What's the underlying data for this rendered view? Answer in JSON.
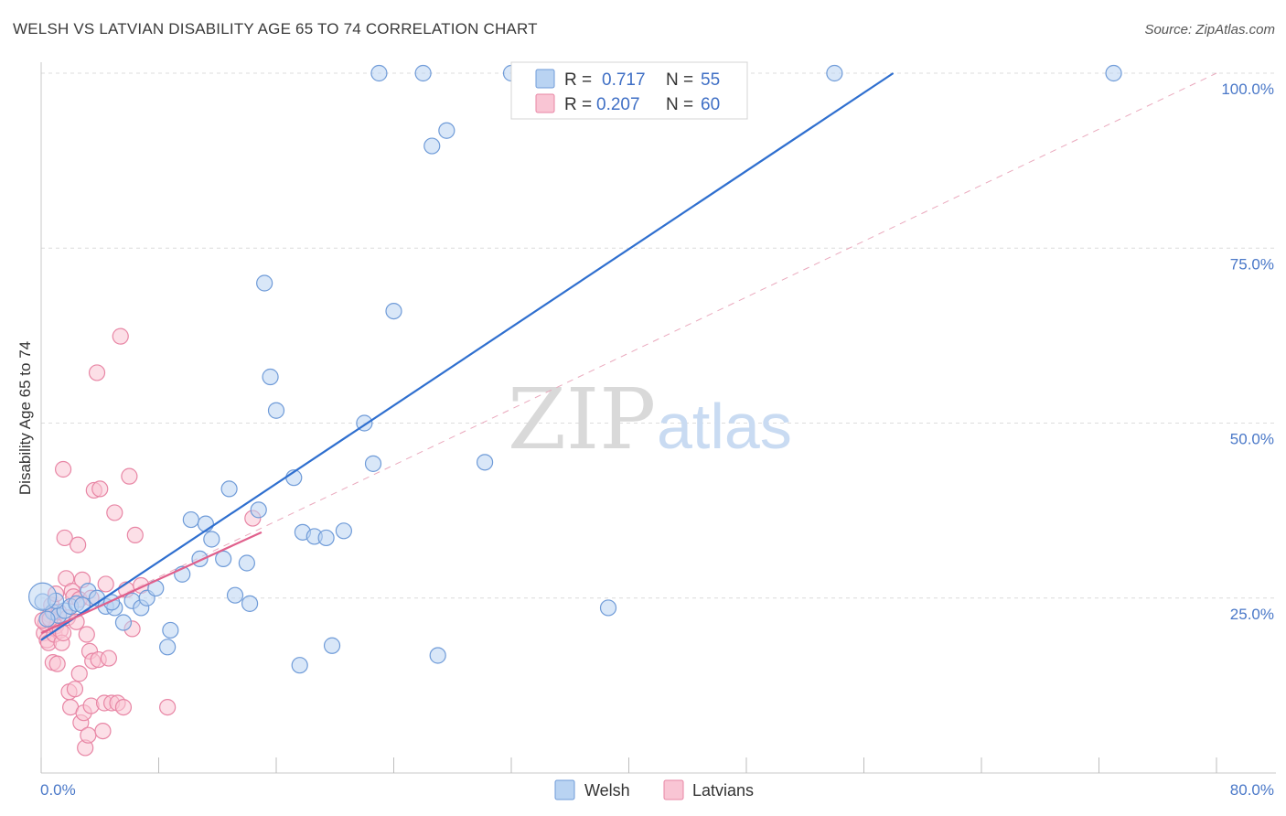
{
  "header": {
    "title": "WELSH VS LATVIAN DISABILITY AGE 65 TO 74 CORRELATION CHART",
    "source": "Source: ZipAtlas.com"
  },
  "chart_data": {
    "type": "scatter",
    "title": "WELSH VS LATVIAN DISABILITY AGE 65 TO 74 CORRELATION CHART",
    "xlabel": "",
    "ylabel": "Disability Age 65 to 74",
    "xlim": [
      0,
      80
    ],
    "ylim": [
      0,
      100
    ],
    "x_tick_labels": [
      {
        "value": 0,
        "label": "0.0%"
      },
      {
        "value": 80,
        "label": "80.0%"
      }
    ],
    "y_tick_labels": [
      {
        "value": 25,
        "label": "25.0%"
      },
      {
        "value": 50,
        "label": "50.0%"
      },
      {
        "value": 75,
        "label": "75.0%"
      },
      {
        "value": 100,
        "label": "100.0%"
      }
    ],
    "legend": {
      "r_label": "R =",
      "n_label": "N =",
      "entries": [
        {
          "series": "Welsh",
          "r": "0.717",
          "n": "55"
        },
        {
          "series": "Latvians",
          "r": "0.207",
          "n": "60"
        }
      ]
    },
    "bottom_legend": [
      "Welsh",
      "Latvians"
    ],
    "watermark": {
      "zip": "ZIP",
      "atlas": "atlas"
    },
    "colors": {
      "welsh_fill": "#b9d3f2",
      "welsh_stroke": "#6f9bd8",
      "welsh_line": "#2f6fcf",
      "latvian_fill": "#f9c5d4",
      "latvian_stroke": "#e886a5",
      "latvian_line": "#e0608c",
      "grid": "#dcdcdc",
      "axis_text": "#4a78c8"
    },
    "series": [
      {
        "name": "Welsh",
        "trend": {
          "x0": 0,
          "y0": 19.0,
          "x1": 58.0,
          "y1": 100
        },
        "points": [
          [
            0.1,
            24.5
          ],
          [
            0.8,
            23.0
          ],
          [
            1.2,
            22.5
          ],
          [
            1.6,
            23.2
          ],
          [
            2.0,
            23.8
          ],
          [
            2.4,
            24.2
          ],
          [
            3.2,
            26.0
          ],
          [
            3.8,
            25.0
          ],
          [
            4.4,
            23.8
          ],
          [
            5.0,
            23.6
          ],
          [
            5.6,
            21.5
          ],
          [
            6.2,
            24.6
          ],
          [
            6.8,
            23.6
          ],
          [
            7.2,
            25.0
          ],
          [
            7.8,
            26.4
          ],
          [
            8.8,
            20.4
          ],
          [
            8.6,
            18.0
          ],
          [
            9.6,
            28.4
          ],
          [
            10.2,
            36.2
          ],
          [
            10.8,
            30.6
          ],
          [
            11.2,
            35.6
          ],
          [
            11.6,
            33.4
          ],
          [
            12.4,
            30.6
          ],
          [
            12.8,
            40.6
          ],
          [
            13.2,
            25.4
          ],
          [
            14.0,
            30.0
          ],
          [
            14.2,
            24.2
          ],
          [
            14.8,
            37.6
          ],
          [
            15.2,
            70.0
          ],
          [
            15.6,
            56.6
          ],
          [
            16.0,
            51.8
          ],
          [
            17.2,
            42.2
          ],
          [
            17.6,
            15.4
          ],
          [
            17.8,
            34.4
          ],
          [
            18.6,
            33.8
          ],
          [
            19.4,
            33.6
          ],
          [
            19.8,
            18.2
          ],
          [
            20.6,
            34.6
          ],
          [
            22.0,
            50.0
          ],
          [
            22.6,
            44.2
          ],
          [
            23.0,
            100
          ],
          [
            24.0,
            66.0
          ],
          [
            26.0,
            100
          ],
          [
            26.6,
            89.6
          ],
          [
            27.0,
            16.8
          ],
          [
            27.6,
            91.8
          ],
          [
            30.2,
            44.4
          ],
          [
            32.0,
            100
          ],
          [
            38.6,
            23.6
          ],
          [
            54.0,
            100
          ],
          [
            73.0,
            100
          ],
          [
            0.4,
            22.0
          ],
          [
            1.0,
            24.6
          ],
          [
            2.8,
            24.0
          ],
          [
            4.8,
            24.4
          ]
        ]
      },
      {
        "name": "Latvians",
        "trend": {
          "x0": 0,
          "y0": 20.0,
          "x1": 15.0,
          "y1": 34.4
        },
        "points": [
          [
            0.2,
            20.0
          ],
          [
            0.3,
            21.4
          ],
          [
            0.4,
            19.0
          ],
          [
            0.5,
            18.6
          ],
          [
            0.6,
            22.6
          ],
          [
            0.7,
            24.0
          ],
          [
            0.8,
            15.8
          ],
          [
            0.9,
            19.8
          ],
          [
            1.0,
            21.0
          ],
          [
            1.1,
            15.6
          ],
          [
            1.2,
            23.0
          ],
          [
            1.3,
            20.4
          ],
          [
            1.4,
            18.6
          ],
          [
            1.5,
            43.4
          ],
          [
            1.6,
            33.6
          ],
          [
            1.7,
            27.8
          ],
          [
            1.8,
            22.2
          ],
          [
            1.9,
            11.6
          ],
          [
            2.0,
            9.4
          ],
          [
            2.1,
            26.0
          ],
          [
            2.2,
            25.2
          ],
          [
            2.3,
            12.0
          ],
          [
            2.4,
            21.6
          ],
          [
            2.5,
            32.6
          ],
          [
            2.6,
            14.2
          ],
          [
            2.7,
            7.2
          ],
          [
            2.8,
            27.6
          ],
          [
            2.9,
            8.6
          ],
          [
            3.0,
            3.6
          ],
          [
            3.1,
            19.8
          ],
          [
            3.2,
            5.4
          ],
          [
            3.3,
            17.4
          ],
          [
            3.4,
            9.6
          ],
          [
            3.5,
            16.0
          ],
          [
            3.6,
            40.4
          ],
          [
            3.8,
            57.2
          ],
          [
            3.9,
            16.2
          ],
          [
            4.0,
            40.6
          ],
          [
            4.2,
            6.0
          ],
          [
            4.3,
            10.0
          ],
          [
            4.4,
            27.0
          ],
          [
            4.6,
            16.4
          ],
          [
            4.8,
            10.0
          ],
          [
            5.0,
            37.2
          ],
          [
            5.2,
            10.0
          ],
          [
            5.4,
            62.4
          ],
          [
            5.6,
            9.4
          ],
          [
            5.8,
            26.2
          ],
          [
            6.0,
            42.4
          ],
          [
            6.2,
            20.6
          ],
          [
            6.4,
            34.0
          ],
          [
            6.8,
            26.8
          ],
          [
            8.6,
            9.4
          ],
          [
            14.4,
            36.4
          ],
          [
            0.1,
            21.8
          ],
          [
            0.6,
            22.0
          ],
          [
            1.0,
            25.6
          ],
          [
            2.6,
            24.8
          ],
          [
            3.4,
            25.0
          ],
          [
            1.5,
            20.0
          ]
        ]
      }
    ]
  }
}
